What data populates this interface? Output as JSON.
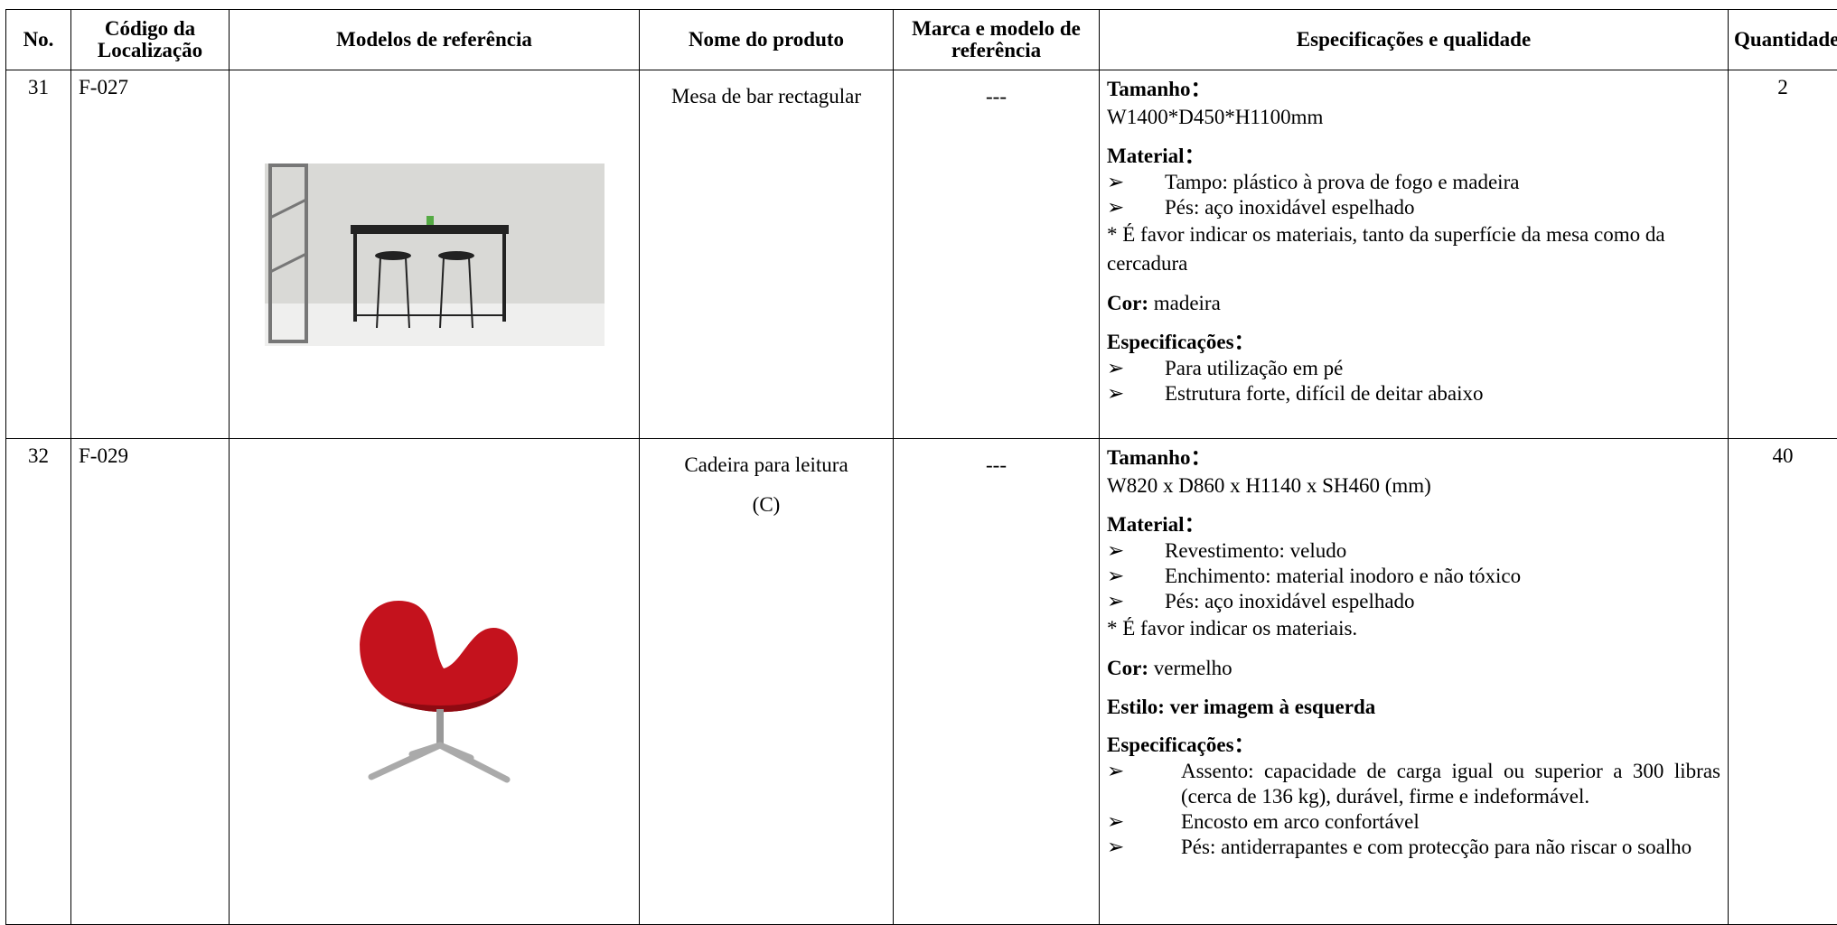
{
  "table": {
    "columns": [
      "No.",
      "Código da Localização",
      "Modelos de referência",
      "Nome do produto",
      "Marca e modelo de referência",
      "Especificações e qualidade",
      "Quantidade"
    ],
    "rows": [
      {
        "no": "31",
        "code": "F-027",
        "name": [
          "Mesa de bar rectagular"
        ],
        "brand": "---",
        "specs": [
          {
            "heading": "Tamanho：",
            "lines": [
              "W1400*D450*H1100mm"
            ]
          },
          {
            "heading": "Material：",
            "bullets": [
              "Tampo: plástico à prova de fogo e madeira",
              "Pés: aço inoxidável espelhado"
            ],
            "lines": [
              "* É favor indicar os materiais, tanto da superfície da mesa como da cercadura"
            ]
          },
          {
            "label": "Cor:",
            "text": "madeira"
          },
          {
            "heading": "Especificações：",
            "bullets": [
              "Para utilização em pé",
              "Estrutura forte, difícil de deitar abaixo"
            ]
          }
        ],
        "quantity": "2"
      },
      {
        "no": "32",
        "code": "F-029",
        "name": [
          "Cadeira para leitura",
          "(C)"
        ],
        "brand": "---",
        "specs": [
          {
            "heading": "Tamanho：",
            "lines": [
              "W820 x D860 x H1140 x SH460 (mm)"
            ]
          },
          {
            "heading": "Material：",
            "bullets": [
              "Revestimento: veludo",
              "Enchimento: material inodoro e não tóxico",
              "Pés: aço inoxidável espelhado"
            ],
            "lines": [
              "* É favor indicar os materiais."
            ]
          },
          {
            "label": "Cor:",
            "text": "vermelho"
          },
          {
            "heading": "Estilo: ver imagem à esquerda"
          },
          {
            "heading": "Especificações：",
            "bullets": [
              "Assento: capacidade de carga igual ou superior a 300 libras (cerca de 136 kg), durável, firme e indeformável.",
              "Encosto em arco confortável",
              "Pés: antiderrapantes e com protecção para não riscar o soalho"
            ]
          }
        ],
        "quantity": "40"
      }
    ]
  }
}
